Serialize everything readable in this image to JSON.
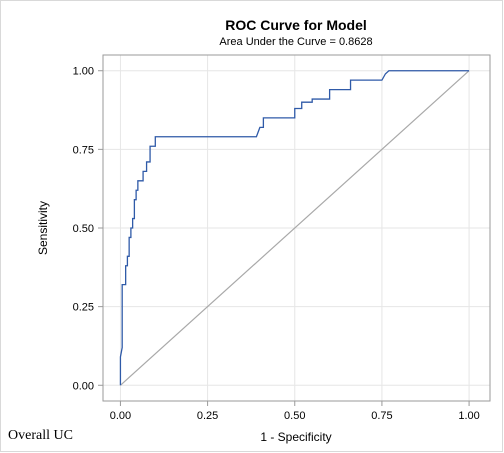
{
  "chart_data": {
    "type": "line",
    "title": "ROC Curve for Model",
    "subtitle": "Area Under the Curve = 0.8628",
    "xlabel": "1 - Specificity",
    "ylabel": "Sensitivity",
    "xlim": [
      -0.05,
      1.06
    ],
    "ylim": [
      -0.05,
      1.05
    ],
    "xticks": [
      "0.00",
      "0.25",
      "0.50",
      "0.75",
      "1.00"
    ],
    "yticks": [
      "0.00",
      "0.25",
      "0.50",
      "0.75",
      "1.00"
    ],
    "grid": true,
    "series": [
      {
        "color": "#2f5aa8",
        "x": [
          0,
          0,
          0.005,
          0.005,
          0.015,
          0.015,
          0.02,
          0.02,
          0.025,
          0.025,
          0.03,
          0.03,
          0.035,
          0.035,
          0.04,
          0.04,
          0.045,
          0.045,
          0.05,
          0.05,
          0.055,
          0.055,
          0.065,
          0.065,
          0.075,
          0.075,
          0.085,
          0.085,
          0.1,
          0.1,
          0.39,
          0.4,
          0.41,
          0.41,
          0.5,
          0.5,
          0.52,
          0.52,
          0.55,
          0.55,
          0.6,
          0.6,
          0.63,
          0.63,
          0.66,
          0.66,
          0.75,
          0.76,
          0.77,
          1.0
        ],
        "y": [
          0,
          0.09,
          0.12,
          0.32,
          0.32,
          0.38,
          0.38,
          0.41,
          0.41,
          0.47,
          0.47,
          0.5,
          0.5,
          0.53,
          0.53,
          0.59,
          0.59,
          0.62,
          0.62,
          0.65,
          0.65,
          0.65,
          0.65,
          0.68,
          0.68,
          0.71,
          0.71,
          0.76,
          0.76,
          0.79,
          0.79,
          0.82,
          0.82,
          0.85,
          0.85,
          0.88,
          0.88,
          0.9,
          0.9,
          0.91,
          0.91,
          0.94,
          0.94,
          0.94,
          0.94,
          0.97,
          0.97,
          0.99,
          1.0,
          1.0
        ]
      }
    ],
    "reference_line": {
      "x": [
        0,
        1
      ],
      "y": [
        0,
        1
      ],
      "color": "#a9a9a9"
    }
  },
  "footnote": "Overall UC",
  "colors": {
    "grid": "#e6e6e6",
    "frame": "#9a9a9a",
    "background": "#ffffff"
  }
}
